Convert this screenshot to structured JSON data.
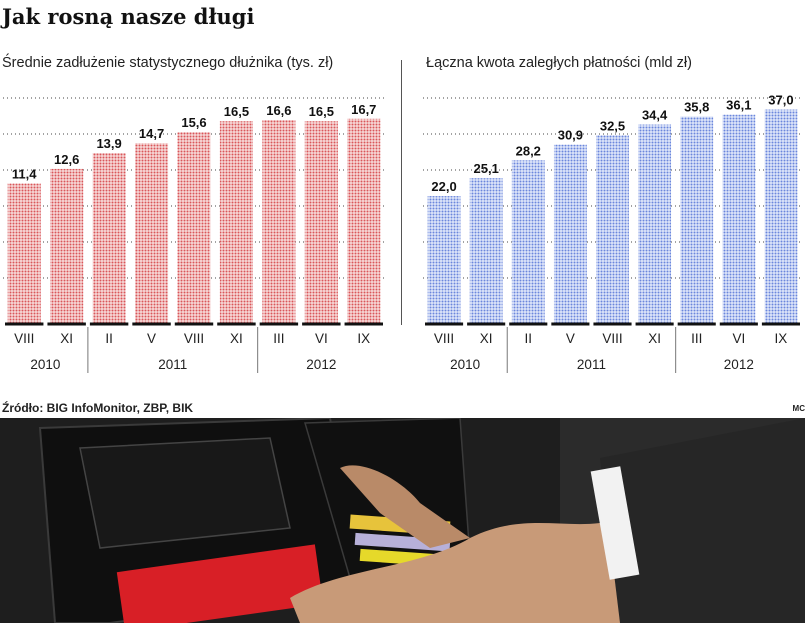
{
  "title": "Jak rosną nasze długi",
  "source": "Źródło: BIG InfoMonitor, ZBP, BIK",
  "corner_tag": "MC",
  "colors": {
    "left_bars": "#e48a8a",
    "right_bars": "#94a7e8",
    "grid": "#333333"
  },
  "chart_data": [
    {
      "type": "bar",
      "title": "Średnie zadłużenie statystycznego dłużnika (tys. zł)",
      "categories": [
        "VIII",
        "XI",
        "II",
        "V",
        "VIII",
        "XI",
        "III",
        "VI",
        "IX"
      ],
      "year_groups": [
        {
          "label": "2010",
          "span": [
            0,
            1
          ]
        },
        {
          "label": "2011",
          "span": [
            2,
            5
          ]
        },
        {
          "label": "2012",
          "span": [
            6,
            8
          ]
        }
      ],
      "values": [
        11.4,
        12.6,
        13.9,
        14.7,
        15.6,
        16.5,
        16.6,
        16.5,
        16.7
      ],
      "labels": [
        "11,4",
        "12,6",
        "13,9",
        "14,7",
        "15,6",
        "16,5",
        "16,6",
        "16,5",
        "16,7"
      ],
      "ylim": [
        0,
        18.4
      ],
      "grid": true
    },
    {
      "type": "bar",
      "title": "Łączna kwota zaległych płatności (mld zł)",
      "categories": [
        "VIII",
        "XI",
        "II",
        "V",
        "VIII",
        "XI",
        "III",
        "VI",
        "IX"
      ],
      "year_groups": [
        {
          "label": "2010",
          "span": [
            0,
            1
          ]
        },
        {
          "label": "2011",
          "span": [
            2,
            5
          ]
        },
        {
          "label": "2012",
          "span": [
            6,
            8
          ]
        }
      ],
      "values": [
        22.0,
        25.1,
        28.2,
        30.9,
        32.5,
        34.4,
        35.8,
        36.1,
        37.0
      ],
      "labels": [
        "22,0",
        "25,1",
        "28,2",
        "30,9",
        "32,5",
        "34,4",
        "35,8",
        "36,1",
        "37,0"
      ],
      "ylim": [
        0,
        39.0
      ],
      "grid": true
    }
  ]
}
